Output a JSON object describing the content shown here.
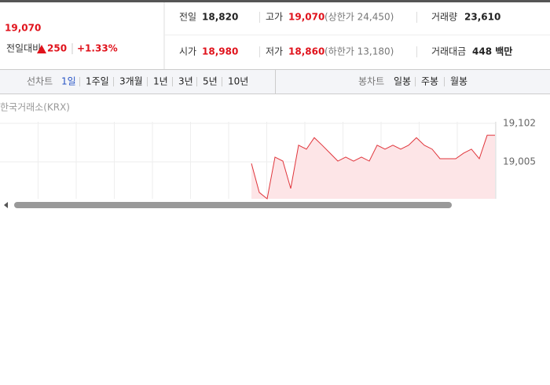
{
  "price": {
    "current": "19,070",
    "change_label": "전일대비",
    "change": "250",
    "change_rate": "+1.33%"
  },
  "stats": [
    {
      "label": "전일",
      "value": "18,820"
    },
    {
      "label": "고가",
      "value": "19,070",
      "note": "(상한가 24,450)"
    },
    {
      "label": "거래량",
      "value": "23,610"
    },
    {
      "label": "시가",
      "value": "18,980"
    },
    {
      "label": "저가",
      "value": "18,860",
      "note": "(하한가 13,180)"
    },
    {
      "label": "거래대금",
      "value": "448 백만"
    }
  ],
  "line_tabs": {
    "label": "선차트",
    "items": [
      "1일",
      "1주일",
      "3개월",
      "1년",
      "3년",
      "5년",
      "10년"
    ],
    "active": 0
  },
  "candle_tabs": {
    "label": "봉차트",
    "items": [
      "일봉",
      "주봉",
      "월봉"
    ]
  },
  "source": "한국거래소(KRX)",
  "chart_data": {
    "type": "line",
    "color": "#e0353b",
    "fill": "#fde5e7",
    "values": [
      null,
      null,
      null,
      null,
      null,
      null,
      null,
      null,
      null,
      null,
      null,
      null,
      null,
      null,
      null,
      null,
      null,
      null,
      null,
      null,
      null,
      null,
      null,
      null,
      null,
      null,
      null,
      null,
      null,
      null,
      null,
      null,
      19001,
      18928,
      18912,
      19017,
      19007,
      18938,
      19047,
      19037,
      19066,
      19047,
      19027,
      19007,
      19017,
      19007,
      19017,
      19007,
      19047,
      19037,
      19047,
      19037,
      19047,
      19066,
      19047,
      19037,
      19013,
      19013,
      19013,
      19027,
      19037,
      19013,
      19072,
      19072
    ],
    "ylim": [
      18912,
      19106
    ],
    "yticks": [
      {
        "value": 19102,
        "label": "19,102"
      },
      {
        "value": 19005,
        "label": "19,005"
      }
    ],
    "grid": true
  }
}
